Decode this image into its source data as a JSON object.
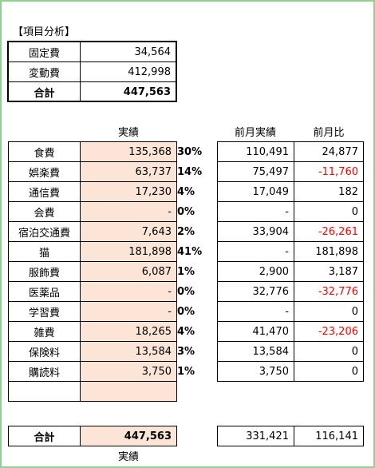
{
  "title": "【項目分析】",
  "summary": {
    "rows": [
      [
        "固定費",
        "34,564"
      ],
      [
        "変動費",
        "412,998"
      ],
      [
        "合計",
        "447,563"
      ]
    ]
  },
  "header": {
    "actual": "実績",
    "prev": "前月実績",
    "ratio": "前月比"
  },
  "items": {
    "rows": [
      [
        "食費",
        "135,368",
        "30%",
        "110,491",
        "24,877"
      ],
      [
        "娯楽費",
        "63,737",
        "14%",
        "75,497",
        "-11,760"
      ],
      [
        "通信費",
        "17,230",
        "4%",
        "17,049",
        "182"
      ],
      [
        "会費",
        "-",
        "0%",
        "-",
        "0"
      ],
      [
        "宿泊交通費",
        "7,643",
        "2%",
        "33,904",
        "-26,261"
      ],
      [
        "猫",
        "181,898",
        "41%",
        "-",
        "181,898"
      ],
      [
        "服飾費",
        "6,087",
        "1%",
        "2,900",
        "3,187"
      ],
      [
        "医薬品",
        "-",
        "0%",
        "32,776",
        "-32,776"
      ],
      [
        "学習費",
        "-",
        "0%",
        "-",
        "0"
      ],
      [
        "雑費",
        "18,265",
        "4%",
        "41,470",
        "-23,206"
      ],
      [
        "保険料",
        "13,584",
        "3%",
        "13,584",
        "0"
      ],
      [
        "購読料",
        "3,750",
        "1%",
        "3,750",
        "0"
      ]
    ]
  },
  "total": {
    "label": "合計",
    "actual": "447,563",
    "prev": "331,421",
    "diff": "116,141"
  },
  "footer": "実績"
}
